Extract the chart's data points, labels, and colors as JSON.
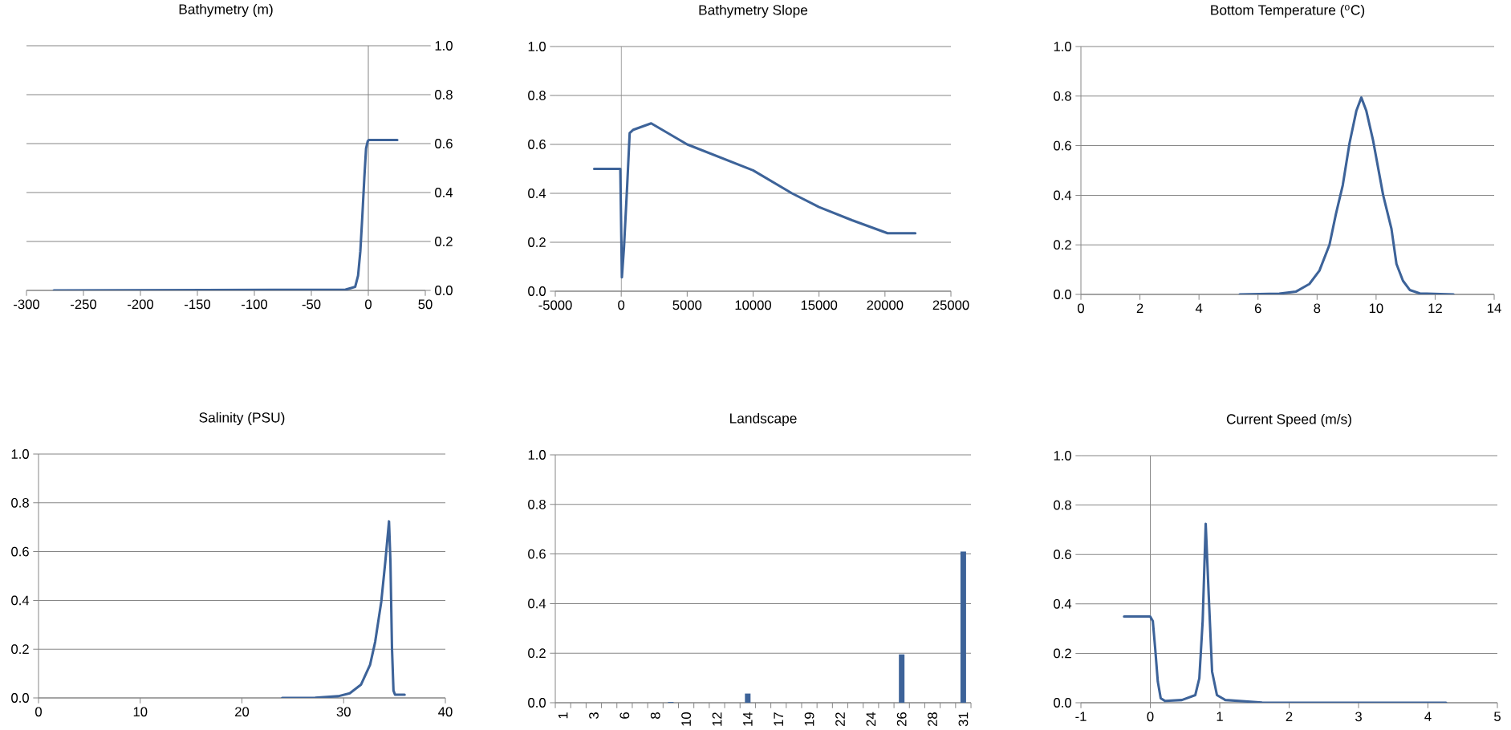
{
  "chart_data": [
    {
      "type": "line",
      "title": "Bathymetry (m)",
      "color": "#3d6399",
      "grid": "y",
      "x": [
        -276,
        -20,
        -15,
        -11.5,
        -9,
        -7,
        -5.3,
        -3.5,
        -2,
        -0.5,
        0.5,
        25.4
      ],
      "values": [
        0,
        0.003,
        0.01,
        0.015,
        0.06,
        0.16,
        0.3,
        0.46,
        0.58,
        0.61,
        0.615,
        0.615
      ],
      "ref_lines": [
        {
          "axis": "x",
          "value": 0
        }
      ],
      "xlim": [
        -300,
        50
      ],
      "xticks": [
        -300,
        -250,
        -200,
        -150,
        -100,
        -50,
        0,
        50
      ],
      "ylim": [
        0,
        1
      ],
      "yticks": [
        {
          "value": 0,
          "label": "0.0"
        },
        {
          "value": 0.2,
          "label": "0.2"
        },
        {
          "value": 0.4,
          "label": "0.4"
        },
        {
          "value": 0.6,
          "label": "0.6"
        },
        {
          "value": 0.8,
          "label": "0.8"
        },
        {
          "value": 1,
          "label": "1.0"
        }
      ]
    },
    {
      "type": "line",
      "title": "Bathymetry Slope",
      "color": "#3d6399",
      "grid": "y",
      "x": [
        -2050,
        -70,
        50,
        210,
        450,
        640,
        920,
        2270,
        5000,
        10000,
        12950,
        15000,
        17500,
        20200,
        22300
      ],
      "values": [
        0.5,
        0.5,
        0.057,
        0.18,
        0.43,
        0.646,
        0.66,
        0.686,
        0.6,
        0.494,
        0.4,
        0.344,
        0.29,
        0.237,
        0.237
      ],
      "ref_lines": [
        {
          "axis": "x",
          "value": 0
        }
      ],
      "xlim": [
        -5000,
        25000
      ],
      "xticks": [
        -5000,
        0,
        5000,
        10000,
        15000,
        20000,
        25000
      ],
      "ylim": [
        0,
        1
      ],
      "yticks": [
        {
          "value": 0,
          "label": "0.0"
        },
        {
          "value": 0.2,
          "label": "0.2"
        },
        {
          "value": 0.4,
          "label": "0.4"
        },
        {
          "value": 0.6,
          "label": "0.6"
        },
        {
          "value": 0.8,
          "label": "0.8"
        },
        {
          "value": 1,
          "label": "1.0"
        }
      ]
    },
    {
      "type": "line",
      "title": "Bottom Temperature ($^{o}$C)",
      "color": "#3d6399",
      "grid": "y",
      "x": [
        5.38,
        6.72,
        7.28,
        7.74,
        8.08,
        8.42,
        8.64,
        8.87,
        9.1,
        9.33,
        9.5,
        9.67,
        9.9,
        10.24,
        10.52,
        10.69,
        10.91,
        11.14,
        11.48,
        12.62
      ],
      "values": [
        0,
        0.003,
        0.011,
        0.042,
        0.096,
        0.2,
        0.325,
        0.44,
        0.61,
        0.74,
        0.794,
        0.74,
        0.62,
        0.4,
        0.265,
        0.123,
        0.055,
        0.018,
        0.004,
        0
      ],
      "xlim": [
        0,
        14
      ],
      "xticks": [
        0,
        2,
        4,
        6,
        8,
        10,
        12,
        14
      ],
      "ylim": [
        0,
        1
      ],
      "yticks": [
        {
          "value": 0,
          "label": "0.0"
        },
        {
          "value": 0.2,
          "label": "0.2"
        },
        {
          "value": 0.4,
          "label": "0.4"
        },
        {
          "value": 0.6,
          "label": "0.6"
        },
        {
          "value": 0.8,
          "label": "0.8"
        },
        {
          "value": 1,
          "label": "1.0"
        }
      ]
    },
    {
      "type": "line",
      "title": "Salinity (PSU)",
      "color": "#3d6399",
      "grid": "y",
      "x": [
        23.96,
        27.2,
        29.47,
        30.6,
        31.7,
        32.6,
        33.1,
        33.7,
        34.1,
        34.46,
        34.6,
        34.75,
        34.9,
        35.05,
        36.0
      ],
      "values": [
        0,
        0.001,
        0.007,
        0.019,
        0.054,
        0.136,
        0.23,
        0.395,
        0.56,
        0.724,
        0.56,
        0.207,
        0.03,
        0.013,
        0.013
      ],
      "xlim": [
        0,
        40
      ],
      "xticks": [
        0,
        10,
        20,
        30,
        40
      ],
      "ylim": [
        0,
        1
      ],
      "yticks": [
        {
          "value": 0,
          "label": "0.0"
        },
        {
          "value": 0.2,
          "label": "0.2"
        },
        {
          "value": 0.4,
          "label": "0.4"
        },
        {
          "value": 0.6,
          "label": "0.6"
        },
        {
          "value": 0.8,
          "label": "0.8"
        },
        {
          "value": 1,
          "label": "1.0"
        }
      ]
    },
    {
      "type": "bar",
      "title": "Landscape",
      "color": "#3d6399",
      "grid": "y",
      "categories": [
        "1",
        null,
        "3",
        null,
        "6",
        null,
        "8",
        null,
        "10",
        null,
        "12",
        null,
        "14",
        null,
        "17",
        null,
        "19",
        null,
        "22",
        null,
        "24",
        null,
        "26",
        null,
        "28",
        null,
        "31"
      ],
      "values": [
        0,
        0,
        0,
        0,
        0,
        0,
        0,
        0.003,
        0,
        0,
        0,
        0,
        0.037,
        0,
        0,
        0,
        0,
        0,
        0,
        0,
        0,
        0,
        0.195,
        0,
        0,
        0,
        0.61
      ],
      "ylim": [
        0,
        1
      ],
      "yticks": [
        {
          "value": 0,
          "label": "0.0"
        },
        {
          "value": 0.2,
          "label": "0.2"
        },
        {
          "value": 0.4,
          "label": "0.4"
        },
        {
          "value": 0.6,
          "label": "0.6"
        },
        {
          "value": 0.8,
          "label": "0.8"
        },
        {
          "value": 1,
          "label": "1.0"
        }
      ]
    },
    {
      "type": "line",
      "title": "Current Speed (m/s)",
      "color": "#3d6399",
      "grid": "y",
      "x": [
        -0.378,
        -0.002,
        0.036,
        0.07,
        0.108,
        0.15,
        0.214,
        0.455,
        0.648,
        0.706,
        0.754,
        0.798,
        0.841,
        0.89,
        0.96,
        1.08,
        1.61,
        4.26
      ],
      "values": [
        0.349,
        0.349,
        0.33,
        0.22,
        0.085,
        0.018,
        0.007,
        0.011,
        0.031,
        0.099,
        0.33,
        0.724,
        0.437,
        0.126,
        0.031,
        0.011,
        0.001,
        0
      ],
      "ref_lines": [
        {
          "axis": "x",
          "value": 0
        }
      ],
      "xlim": [
        -1,
        5
      ],
      "xticks": [
        -1,
        0,
        1,
        2,
        3,
        4,
        5
      ],
      "ylim": [
        0,
        1
      ],
      "yticks": [
        {
          "value": 0,
          "label": "0.0"
        },
        {
          "value": 0.2,
          "label": "0.2"
        },
        {
          "value": 0.4,
          "label": "0.4"
        },
        {
          "value": 0.6,
          "label": "0.6"
        },
        {
          "value": 0.8,
          "label": "0.8"
        },
        {
          "value": 1,
          "label": "1.0"
        }
      ]
    }
  ]
}
